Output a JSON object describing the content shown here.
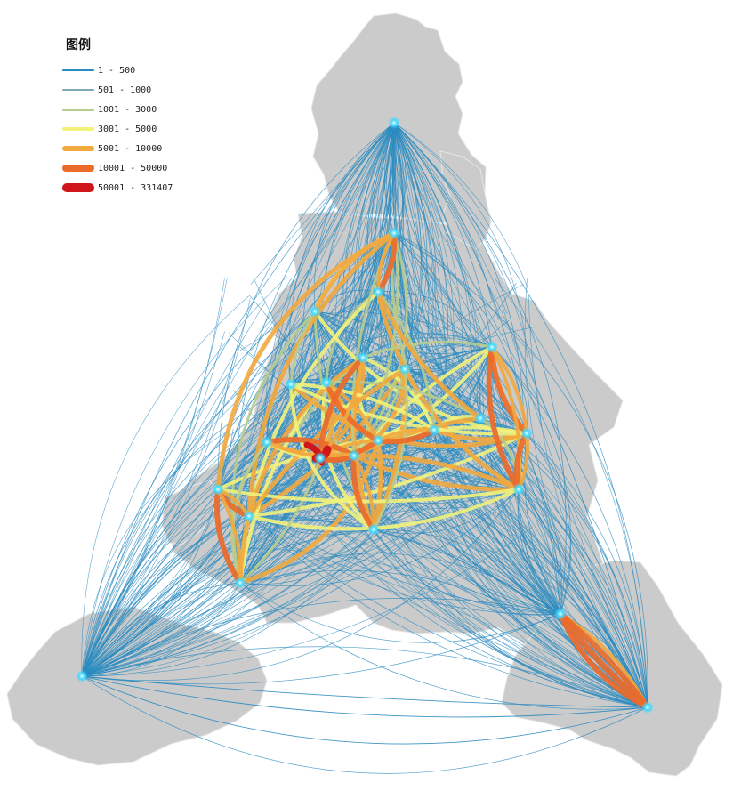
{
  "legend": {
    "title": "图例",
    "classes": [
      {
        "label": "1 - 500",
        "color": "#2a8bc0"
      },
      {
        "label": "501 - 1000",
        "color": "#7fa8b4"
      },
      {
        "label": "1001 - 3000",
        "color": "#b9cc8c"
      },
      {
        "label": "3001 - 5000",
        "color": "#f2f27a"
      },
      {
        "label": "5001 - 10000",
        "color": "#f2a93e"
      },
      {
        "label": "10001 - 50000",
        "color": "#ec6a2a"
      },
      {
        "label": "50001 - 331407",
        "color": "#d0161b"
      }
    ]
  },
  "colors": {
    "region_fill": "#cbcbcb",
    "region_border": "#e6e6e6",
    "node_glow": "#41d9ff",
    "base_flow": "#2a8bc0"
  }
}
